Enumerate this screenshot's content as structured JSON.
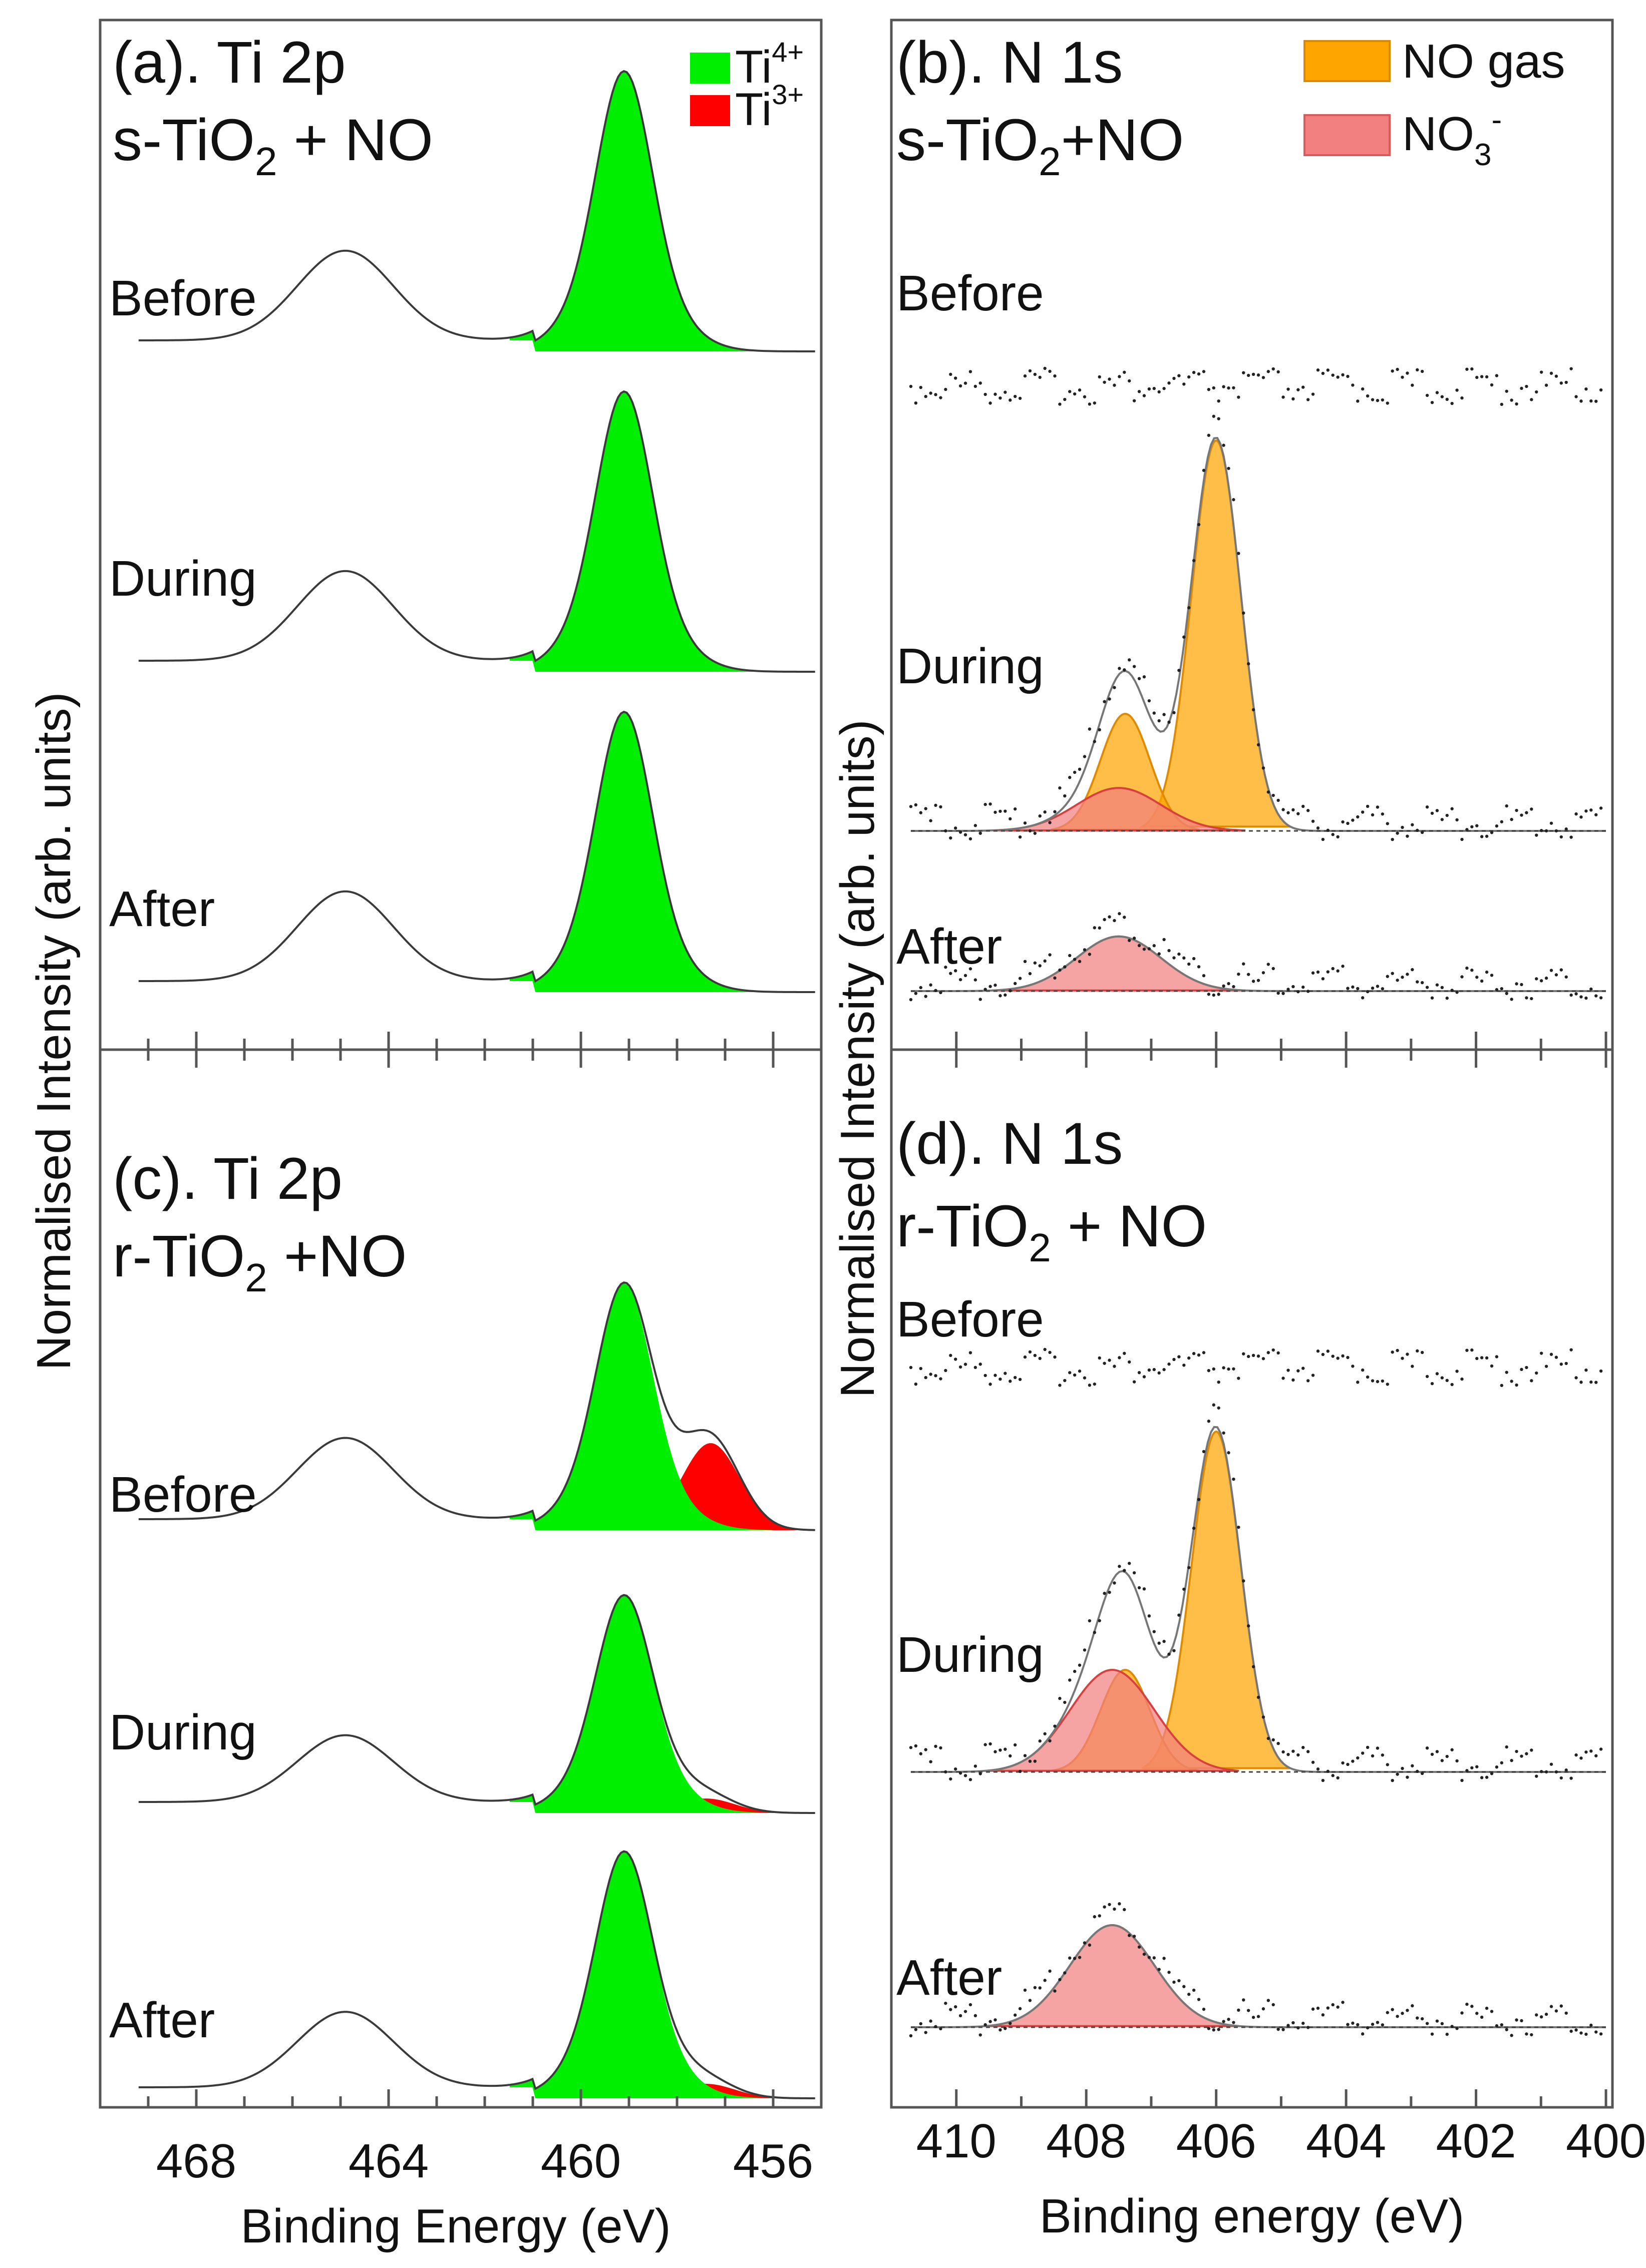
{
  "figure": {
    "y_axis_title": "Normalised Intensity (arb. units)"
  },
  "chart_data": [
    {
      "panel": "a",
      "type": "line",
      "title": "(a). Ti 2p",
      "sample": "s-TiO",
      "sample_suffix": " + NO",
      "sample_subscript": "2",
      "xlabel": "Binding Energy (eV)",
      "ylabel": "Normalised Intensity (arb. units)",
      "x_reversed": true,
      "xlim": [
        470,
        455
      ],
      "x_ticks": [
        468,
        464,
        460,
        456
      ],
      "legend": [
        {
          "name": "Ti",
          "sup": "4+",
          "color": "#00ee00"
        },
        {
          "name": "Ti",
          "sup": "3+",
          "color": "#ff0000"
        }
      ],
      "series": [
        {
          "name": "Before",
          "ti4_peak_eV": 459.1,
          "ti4_height": 1.0,
          "ti3_peak_eV": 457.3,
          "ti3_height": 0.0,
          "ti2p1_peak_eV": 464.9,
          "ti2p1_height": 0.32
        },
        {
          "name": "During",
          "ti4_peak_eV": 459.1,
          "ti4_height": 1.0,
          "ti3_peak_eV": 457.3,
          "ti3_height": 0.0,
          "ti2p1_peak_eV": 464.9,
          "ti2p1_height": 0.32
        },
        {
          "name": "After",
          "ti4_peak_eV": 459.1,
          "ti4_height": 1.0,
          "ti3_peak_eV": 457.3,
          "ti3_height": 0.0,
          "ti2p1_peak_eV": 464.9,
          "ti2p1_height": 0.32
        }
      ]
    },
    {
      "panel": "b",
      "type": "line",
      "title": "(b). N 1s",
      "sample": "s-TiO",
      "sample_suffix": "+NO",
      "sample_subscript": "2",
      "xlabel": "Binding energy (eV)",
      "ylabel": "Normalised Intensity (arb. units)",
      "x_reversed": true,
      "xlim": [
        411,
        399.9
      ],
      "x_ticks": [
        410,
        408,
        406,
        404,
        402,
        400
      ],
      "legend": [
        {
          "name": "NO gas",
          "sup": "",
          "sub": "",
          "color": "#ffa500"
        },
        {
          "name": "NO",
          "sup": "-",
          "sub": "3",
          "color": "#f28080"
        }
      ],
      "series": [
        {
          "name": "Before",
          "no_gas_peaks_eV": [],
          "no_gas_heights": [],
          "nitrate_peak_eV": null,
          "nitrate_height": 0
        },
        {
          "name": "During",
          "no_gas_peaks_eV": [
            406.0,
            407.4
          ],
          "no_gas_heights": [
            1.0,
            0.3
          ],
          "nitrate_peak_eV": 407.5,
          "nitrate_height": 0.11
        },
        {
          "name": "After",
          "no_gas_peaks_eV": [],
          "no_gas_heights": [],
          "nitrate_peak_eV": 407.5,
          "nitrate_height": 0.14
        }
      ]
    },
    {
      "panel": "c",
      "type": "line",
      "title": "(c). Ti 2p",
      "sample": "r-TiO",
      "sample_suffix": " +NO",
      "sample_subscript": "2",
      "xlabel": "Binding Energy (eV)",
      "ylabel": "Normalised Intensity (arb. units)",
      "x_reversed": true,
      "xlim": [
        470,
        455
      ],
      "x_ticks": [
        468,
        464,
        460,
        456
      ],
      "series": [
        {
          "name": "Before",
          "ti4_peak_eV": 459.1,
          "ti4_height": 0.85,
          "ti3_peak_eV": 457.3,
          "ti3_height": 0.3,
          "ti2p1_peak_eV": 464.9,
          "ti2p1_height": 0.28
        },
        {
          "name": "During",
          "ti4_peak_eV": 459.1,
          "ti4_height": 0.75,
          "ti3_peak_eV": 457.4,
          "ti3_height": 0.05,
          "ti2p1_peak_eV": 464.9,
          "ti2p1_height": 0.23
        },
        {
          "name": "After",
          "ti4_peak_eV": 459.1,
          "ti4_height": 0.85,
          "ti3_peak_eV": 457.4,
          "ti3_height": 0.05,
          "ti2p1_peak_eV": 464.9,
          "ti2p1_height": 0.26
        }
      ]
    },
    {
      "panel": "d",
      "type": "line",
      "title": "(d). N 1s",
      "sample": "r-TiO",
      "sample_suffix": " + NO",
      "sample_subscript": "2",
      "xlabel": "Binding energy (eV)",
      "ylabel": "Normalised Intensity (arb. units)",
      "x_reversed": true,
      "xlim": [
        411,
        399.9
      ],
      "x_ticks": [
        410,
        408,
        406,
        404,
        402,
        400
      ],
      "series": [
        {
          "name": "Before",
          "no_gas_peaks_eV": [],
          "no_gas_heights": [],
          "nitrate_peak_eV": null,
          "nitrate_height": 0
        },
        {
          "name": "During",
          "no_gas_peaks_eV": [
            406.0,
            407.4
          ],
          "no_gas_heights": [
            1.0,
            0.3
          ],
          "nitrate_peak_eV": 407.6,
          "nitrate_height": 0.3
        },
        {
          "name": "After",
          "no_gas_peaks_eV": [],
          "no_gas_heights": [],
          "nitrate_peak_eV": 407.6,
          "nitrate_height": 0.3
        }
      ]
    }
  ]
}
